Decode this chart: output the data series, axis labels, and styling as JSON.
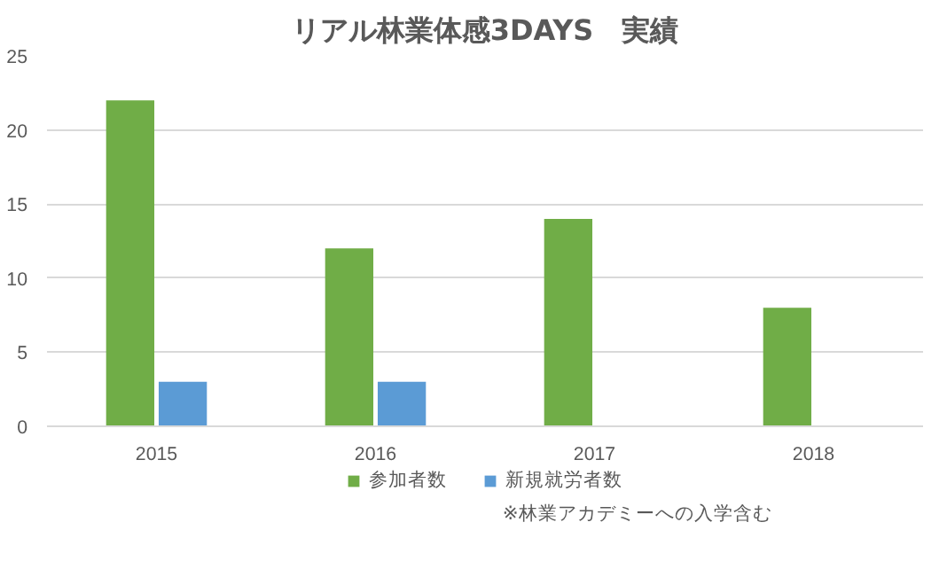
{
  "chart_data": {
    "type": "bar",
    "title": "リアル林業体感3DAYS　実績",
    "categories": [
      "2015",
      "2016",
      "2017",
      "2018"
    ],
    "series": [
      {
        "name": "参加者数",
        "color": "#70ad47",
        "values": [
          22,
          12,
          14,
          8
        ]
      },
      {
        "name": "新規就労者数",
        "color": "#5b9bd5",
        "values": [
          3,
          3,
          null,
          null
        ]
      }
    ],
    "ylim": [
      0,
      25
    ],
    "yticks": [
      0,
      5,
      10,
      15,
      20,
      25
    ],
    "grid": "y",
    "legend": "bottom",
    "annotations": [
      "※林業アカデミーへの入学含む"
    ]
  }
}
